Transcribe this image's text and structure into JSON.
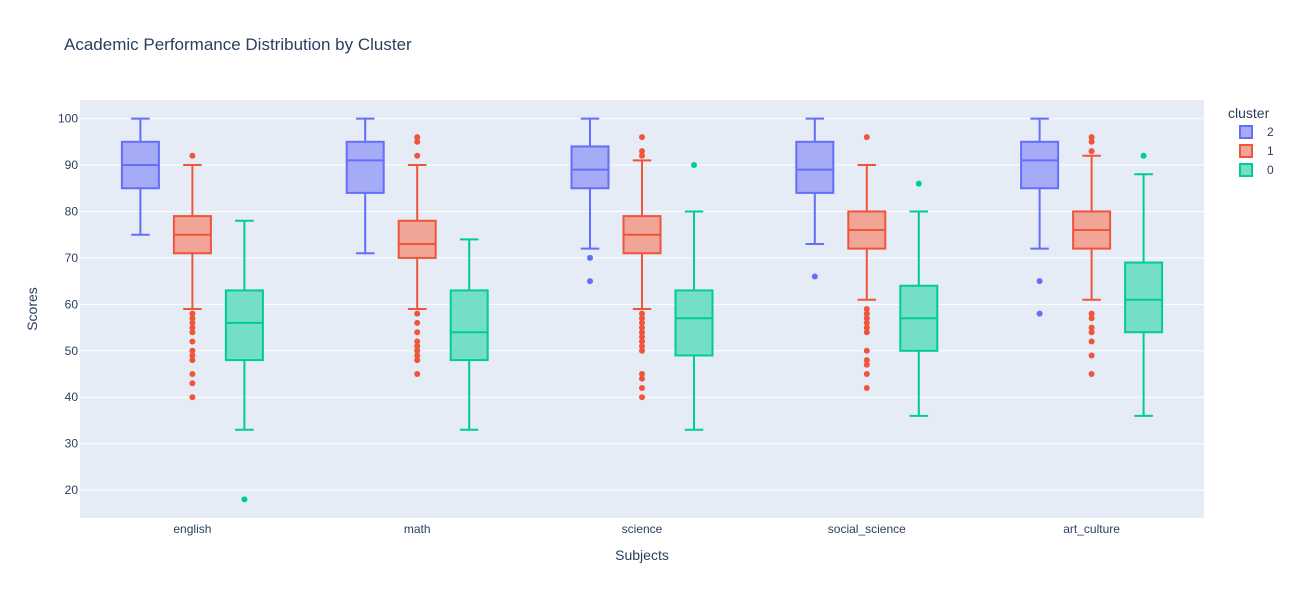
{
  "chart_data": {
    "type": "box",
    "title": "Academic Performance Distribution by Cluster",
    "xlabel": "Subjects",
    "ylabel": "Scores",
    "categories": [
      "english",
      "math",
      "science",
      "social_science",
      "art_culture"
    ],
    "ylim": [
      14,
      104
    ],
    "yticks": [
      20,
      30,
      40,
      50,
      60,
      70,
      80,
      90,
      100
    ],
    "grid": true,
    "legend": {
      "title": "cluster",
      "position": "top-right"
    },
    "series": [
      {
        "name": "2",
        "color": "#636efa",
        "fill": "#a6abf8",
        "boxes": [
          {
            "q1": 85,
            "median": 90,
            "q3": 95,
            "lower": 75,
            "upper": 100,
            "outliers": []
          },
          {
            "q1": 84,
            "median": 91,
            "q3": 95,
            "lower": 71,
            "upper": 100,
            "outliers": []
          },
          {
            "q1": 85,
            "median": 89,
            "q3": 94,
            "lower": 72,
            "upper": 100,
            "outliers": [
              70,
              65
            ]
          },
          {
            "q1": 84,
            "median": 89,
            "q3": 95,
            "lower": 73,
            "upper": 100,
            "outliers": [
              66
            ]
          },
          {
            "q1": 85,
            "median": 91,
            "q3": 95,
            "lower": 72,
            "upper": 100,
            "outliers": [
              65,
              58
            ]
          }
        ]
      },
      {
        "name": "1",
        "color": "#ef553b",
        "fill": "#f0a597",
        "boxes": [
          {
            "q1": 71,
            "median": 75,
            "q3": 79,
            "lower": 59,
            "upper": 90,
            "outliers": [
              92,
              58,
              57,
              56,
              55,
              54,
              52,
              50,
              49,
              48,
              45,
              43,
              40
            ]
          },
          {
            "q1": 70,
            "median": 73,
            "q3": 78,
            "lower": 59,
            "upper": 90,
            "outliers": [
              96,
              95,
              92,
              58,
              56,
              54,
              52,
              51,
              50,
              49,
              48,
              45
            ]
          },
          {
            "q1": 71,
            "median": 75,
            "q3": 79,
            "lower": 59,
            "upper": 91,
            "outliers": [
              96,
              93,
              92,
              58,
              57,
              56,
              55,
              54,
              53,
              52,
              51,
              50,
              45,
              44,
              42,
              40
            ]
          },
          {
            "q1": 72,
            "median": 76,
            "q3": 80,
            "lower": 61,
            "upper": 90,
            "outliers": [
              96,
              59,
              58,
              57,
              56,
              55,
              54,
              50,
              48,
              47,
              45,
              42
            ]
          },
          {
            "q1": 72,
            "median": 76,
            "q3": 80,
            "lower": 61,
            "upper": 92,
            "outliers": [
              96,
              95,
              93,
              58,
              57,
              55,
              54,
              52,
              49,
              45
            ]
          }
        ]
      },
      {
        "name": "0",
        "color": "#00cc96",
        "fill": "#75dec6",
        "boxes": [
          {
            "q1": 48,
            "median": 56,
            "q3": 63,
            "lower": 33,
            "upper": 78,
            "outliers": [
              18
            ]
          },
          {
            "q1": 48,
            "median": 54,
            "q3": 63,
            "lower": 33,
            "upper": 74,
            "outliers": []
          },
          {
            "q1": 49,
            "median": 57,
            "q3": 63,
            "lower": 33,
            "upper": 80,
            "outliers": [
              90
            ]
          },
          {
            "q1": 50,
            "median": 57,
            "q3": 64,
            "lower": 36,
            "upper": 80,
            "outliers": [
              86
            ]
          },
          {
            "q1": 54,
            "median": 61,
            "q3": 69,
            "lower": 36,
            "upper": 88,
            "outliers": [
              92
            ]
          }
        ]
      }
    ]
  }
}
